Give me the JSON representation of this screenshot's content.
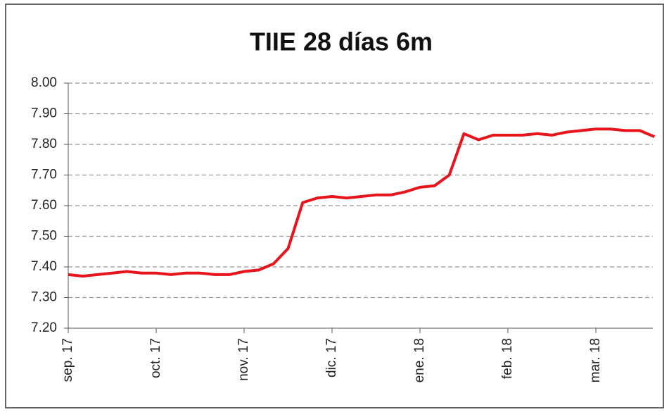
{
  "chart_data": {
    "type": "line",
    "title": "TIIE 28 días 6m",
    "categories": [
      "sep. 17",
      null,
      null,
      null,
      null,
      null,
      "oct. 17",
      null,
      null,
      null,
      null,
      null,
      "nov. 17",
      null,
      null,
      null,
      null,
      null,
      "dic. 17",
      null,
      null,
      null,
      null,
      null,
      "ene. 18",
      null,
      null,
      null,
      null,
      null,
      "feb. 18",
      null,
      null,
      null,
      null,
      null,
      "mar. 18",
      null,
      null,
      null,
      null
    ],
    "series": [
      {
        "name": "TIIE 28 días 6m",
        "color": "#e8141b",
        "values": [
          7.375,
          7.37,
          7.375,
          7.38,
          7.385,
          7.38,
          7.38,
          7.375,
          7.38,
          7.38,
          7.375,
          7.375,
          7.385,
          7.39,
          7.41,
          7.46,
          7.61,
          7.625,
          7.63,
          7.625,
          7.63,
          7.635,
          7.635,
          7.645,
          7.66,
          7.665,
          7.7,
          7.835,
          7.815,
          7.83,
          7.83,
          7.83,
          7.835,
          7.83,
          7.84,
          7.845,
          7.85,
          7.85,
          7.845,
          7.845,
          7.825
        ]
      }
    ],
    "ylim": [
      7.2,
      8.0
    ],
    "yticks": [
      {
        "value": 7.2,
        "label": "7.20"
      },
      {
        "value": 7.3,
        "label": "7.30"
      },
      {
        "value": 7.4,
        "label": "7.40"
      },
      {
        "value": 7.5,
        "label": "7.50"
      },
      {
        "value": 7.6,
        "label": "7.60"
      },
      {
        "value": 7.7,
        "label": "7.70"
      },
      {
        "value": 7.8,
        "label": "7.80"
      },
      {
        "value": 7.9,
        "label": "7.90"
      },
      {
        "value": 8.0,
        "label": "8.00"
      }
    ],
    "grid": true
  }
}
